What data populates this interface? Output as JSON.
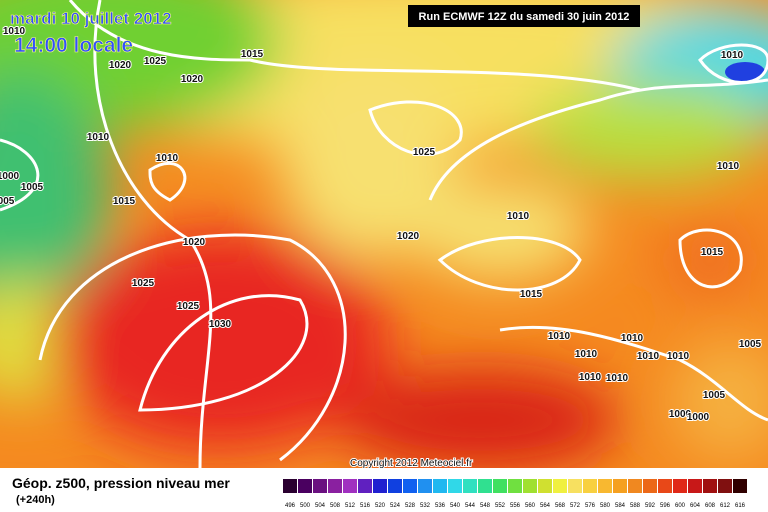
{
  "header": {
    "date": "mardi 10 juillet 2012",
    "time": "14:00 locale",
    "run": "Run ECMWF 12Z du samedi 30 juin 2012"
  },
  "copyright": "Copyright 2012 Meteociel.fr",
  "legend": {
    "title": "Géop. z500, pression niveau mer",
    "lead": "(+240h)",
    "scale": [
      "496",
      "500",
      "504",
      "508",
      "512",
      "516",
      "520",
      "524",
      "528",
      "532",
      "536",
      "540",
      "544",
      "548",
      "552",
      "556",
      "560",
      "564",
      "568",
      "572",
      "576",
      "580",
      "584",
      "588",
      "592",
      "596",
      "600",
      "604",
      "608",
      "612",
      "616"
    ]
  },
  "isobar_labels": [
    "1010",
    "1025",
    "1015",
    "1020",
    "1020",
    "1010",
    "1010",
    "1000",
    "1005",
    "005",
    "1015",
    "1025",
    "1020",
    "1010",
    "1020",
    "1025",
    "1025",
    "1030",
    "1015",
    "1015",
    "1010",
    "1010",
    "1010",
    "1010",
    "1005",
    "1010",
    "1010",
    "1010",
    "1010",
    "1010",
    "1005",
    "1000",
    "1000"
  ]
}
